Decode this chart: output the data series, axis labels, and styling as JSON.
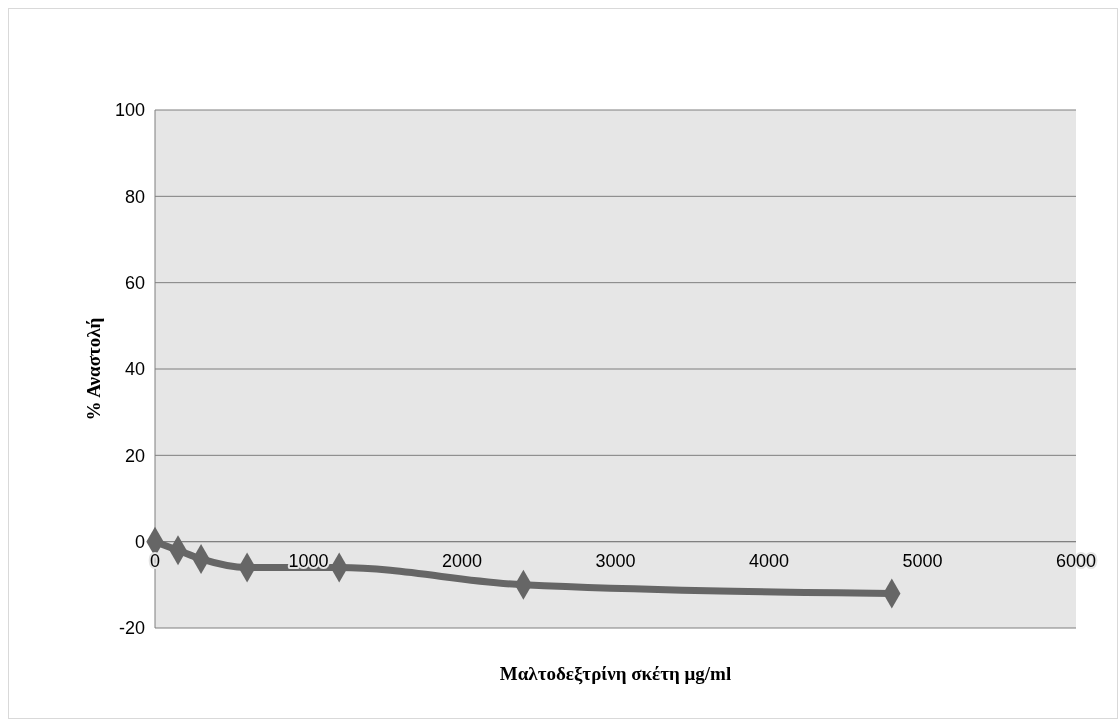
{
  "chart_data": {
    "type": "line",
    "xlabel": "Μαλτοδεξτρίνη σκέτη μg/ml",
    "ylabel": "% Αναστολή",
    "x": [
      0,
      150,
      300,
      600,
      1200,
      2400,
      4800
    ],
    "series": [
      {
        "color": "#666666",
        "values": [
          0,
          -2,
          -4,
          -6,
          -6,
          -10,
          -12
        ]
      }
    ],
    "xlim": [
      0,
      6000
    ],
    "xticks": [
      0,
      1000,
      2000,
      3000,
      4000,
      5000,
      6000
    ],
    "ylim": [
      -20,
      100
    ],
    "yticks": [
      -20,
      0,
      20,
      40,
      60,
      80,
      100
    ],
    "grid": "y",
    "marker": "diamond",
    "line_style": "solid"
  }
}
